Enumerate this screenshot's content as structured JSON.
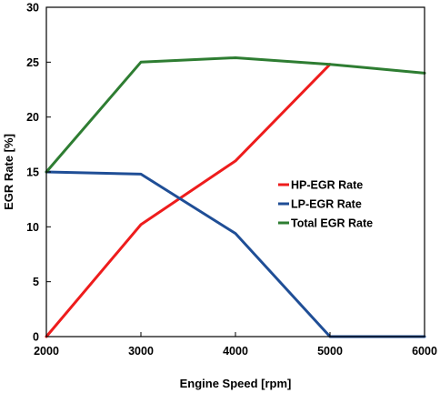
{
  "chart_data": {
    "type": "line",
    "xlabel": "Engine Speed [rpm]",
    "ylabel": "EGR Rate [%]",
    "x": [
      2000,
      3000,
      4000,
      5000,
      6000
    ],
    "xlim": [
      2000,
      6000
    ],
    "ylim": [
      0,
      30
    ],
    "xticks": [
      "2000",
      "3000",
      "4000",
      "5000",
      "6000"
    ],
    "yticks": [
      "0",
      "5",
      "10",
      "15",
      "20",
      "25",
      "30"
    ],
    "grid": false,
    "legend_position": "center-right",
    "series": [
      {
        "name": "HP-EGR Rate",
        "color": "#ee1c1c",
        "values": [
          0,
          10.2,
          16.0,
          24.8,
          null
        ]
      },
      {
        "name": "LP-EGR Rate",
        "color": "#1f4e96",
        "values": [
          15.0,
          14.8,
          9.4,
          0,
          0
        ]
      },
      {
        "name": "Total EGR Rate",
        "color": "#2e7d32",
        "values": [
          15.0,
          25.0,
          25.4,
          24.8,
          24.0
        ]
      }
    ]
  }
}
